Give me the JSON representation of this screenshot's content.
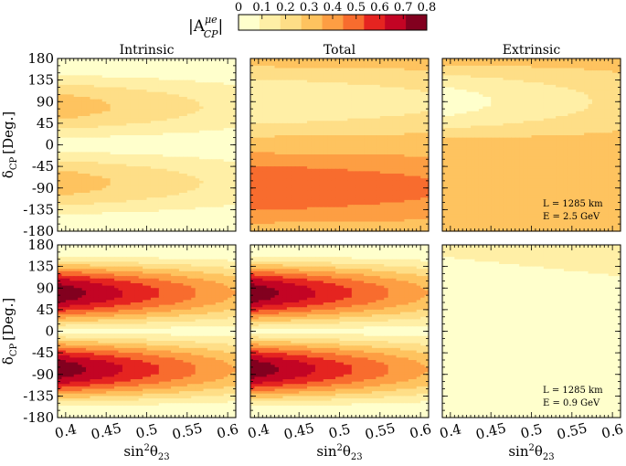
{
  "chart_data": {
    "type": "heatmap",
    "quantity": "|A_CP^{μe}|",
    "colorbar": {
      "label_main": "|A",
      "label_sup": "μe",
      "label_sub": "CP",
      "label_end": "|",
      "ticks": [
        "0",
        "0.1",
        "0.2",
        "0.3",
        "0.4",
        "0.5",
        "0.6",
        "0.7",
        "0.8"
      ],
      "range": [
        0,
        0.8
      ],
      "colors": [
        "#ffffcc",
        "#ffefa6",
        "#fede87",
        "#fec35f",
        "#fd9e43",
        "#f86c2e",
        "#e52420",
        "#c30424",
        "#82001f"
      ]
    },
    "xlabel_main": "sin",
    "xlabel_sup": "2",
    "xlabel_theta": "θ",
    "xlabel_sub": "23",
    "ylabel_main": "δ",
    "ylabel_sub": "CP",
    "ylabel_units": "[Deg.]",
    "x_range": [
      0.39,
      0.61
    ],
    "x_ticks": [
      "0.4",
      "0.45",
      "0.5",
      "0.55",
      "0.6"
    ],
    "x_tick_values": [
      0.4,
      0.45,
      0.5,
      0.55,
      0.6
    ],
    "y_range": [
      -180,
      180
    ],
    "y_ticks": [
      "180",
      "135",
      "90",
      "45",
      "0",
      "-45",
      "-90",
      "-135",
      "-180"
    ],
    "y_tick_values": [
      180,
      135,
      90,
      45,
      0,
      -45,
      -90,
      -135,
      -180
    ],
    "column_titles": [
      "Intrinsic",
      "Total",
      "Extrinsic"
    ],
    "rows": [
      {
        "annotation": [
          "L = 1285 km",
          "E = 2.5 GeV"
        ],
        "panels": [
          {
            "name": "Intrinsic",
            "model": "intrinsic",
            "amplitude": 0.36,
            "max_level": 0.35,
            "min_level": 0.0
          },
          {
            "name": "Total",
            "model": "total",
            "offset": 0.35,
            "amplitude": 0.25,
            "max_level": 0.62,
            "min_level": 0.0
          },
          {
            "name": "Extrinsic",
            "model": "extrinsic",
            "offset": 0.35,
            "amplitude": 0.3,
            "max_level": 0.35,
            "min_level": 0.0
          }
        ]
      },
      {
        "annotation": [
          "L = 1285 km",
          "E = 0.9 GeV"
        ],
        "panels": [
          {
            "name": "Intrinsic",
            "model": "intrinsic",
            "amplitude": 0.88,
            "max_level": 0.8,
            "min_level": 0.0
          },
          {
            "name": "Total",
            "model": "intrinsic",
            "amplitude": 0.88,
            "max_level": 0.8,
            "min_level": 0.0
          },
          {
            "name": "Extrinsic",
            "model": "extrinsic_low",
            "offset": 0.03,
            "max_level": 0.1,
            "min_level": 0.0
          }
        ]
      }
    ]
  }
}
